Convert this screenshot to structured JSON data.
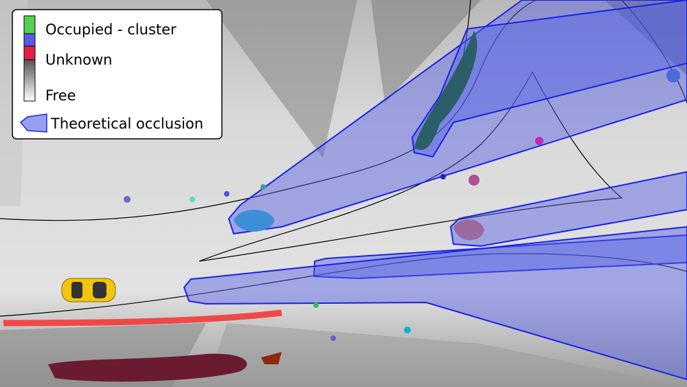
{
  "legend": {
    "occupied": "Occupied - cluster",
    "unknown": "Unknown",
    "free": "Free",
    "occlusion": "Theoretical occlusion"
  }
}
